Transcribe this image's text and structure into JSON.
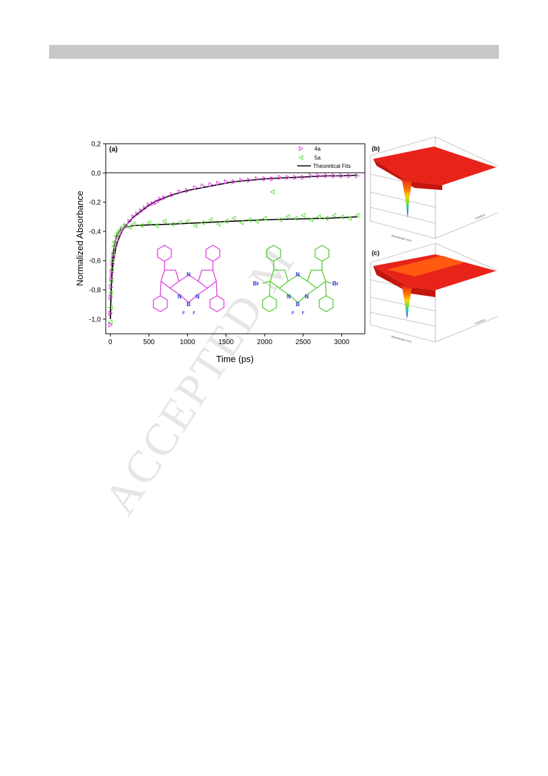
{
  "header": {
    "bar_color": "#c8c8c8"
  },
  "watermark": {
    "text": "ACCEPTED M"
  },
  "chart_data": [
    {
      "type": "scatter",
      "panel_label": "(a)",
      "xlabel": "Time (ps)",
      "ylabel": "Normalized Absorbance",
      "xlim": [
        -60,
        3300
      ],
      "ylim": [
        -1.1,
        0.2
      ],
      "x_ticks": [
        0,
        500,
        1000,
        1500,
        2000,
        2500,
        3000
      ],
      "y_ticks": [
        0.2,
        0.0,
        -0.2,
        -0.4,
        -0.6,
        -0.8,
        -1.0
      ],
      "y_tick_labels": [
        "0,2",
        "0,0",
        "-0,2",
        "-0,4",
        "-0,6",
        "-0,8",
        "-1,0"
      ],
      "grid": false,
      "legend_position": "top-right",
      "series": [
        {
          "name": "4a",
          "marker": "right-triangle",
          "color": "#e040e0",
          "x": [
            0,
            3,
            6,
            10,
            15,
            20,
            30,
            40,
            50,
            70,
            90,
            120,
            150,
            200,
            250,
            300,
            350,
            400,
            450,
            500,
            550,
            600,
            650,
            700,
            800,
            900,
            1000,
            1100,
            1200,
            1300,
            1400,
            1500,
            1600,
            1700,
            1800,
            1900,
            2000,
            2100,
            2200,
            2300,
            2400,
            2500,
            2600,
            2700,
            2800,
            2900,
            3000,
            3100,
            3200
          ],
          "y": [
            -1.04,
            -0.96,
            -0.85,
            -0.78,
            -0.72,
            -0.68,
            -0.62,
            -0.58,
            -0.55,
            -0.5,
            -0.46,
            -0.42,
            -0.39,
            -0.36,
            -0.33,
            -0.3,
            -0.28,
            -0.26,
            -0.24,
            -0.22,
            -0.21,
            -0.2,
            -0.18,
            -0.17,
            -0.15,
            -0.13,
            -0.12,
            -0.1,
            -0.09,
            -0.08,
            -0.07,
            -0.06,
            -0.06,
            -0.05,
            -0.05,
            -0.04,
            -0.04,
            -0.04,
            -0.03,
            -0.03,
            -0.03,
            -0.03,
            -0.02,
            -0.02,
            -0.02,
            -0.02,
            -0.02,
            -0.02,
            -0.02
          ]
        },
        {
          "name": "5a",
          "marker": "left-triangle",
          "color": "#66dd44",
          "x": [
            0,
            3,
            6,
            10,
            15,
            20,
            30,
            40,
            50,
            70,
            90,
            120,
            150,
            200,
            250,
            300,
            400,
            500,
            600,
            700,
            800,
            900,
            1000,
            1100,
            1200,
            1300,
            1400,
            1500,
            1600,
            1700,
            1800,
            1900,
            2000,
            2100,
            2200,
            2300,
            2400,
            2500,
            2600,
            2700,
            2800,
            2900,
            3000,
            3100,
            3200
          ],
          "y": [
            -1.02,
            -0.92,
            -0.82,
            -0.74,
            -0.66,
            -0.6,
            -0.55,
            -0.5,
            -0.47,
            -0.43,
            -0.41,
            -0.39,
            -0.37,
            -0.36,
            -0.37,
            -0.35,
            -0.36,
            -0.34,
            -0.36,
            -0.33,
            -0.35,
            -0.34,
            -0.33,
            -0.36,
            -0.34,
            -0.32,
            -0.35,
            -0.33,
            -0.31,
            -0.34,
            -0.32,
            -0.33,
            -0.31,
            -0.13,
            -0.32,
            -0.3,
            -0.31,
            -0.29,
            -0.32,
            -0.3,
            -0.31,
            -0.29,
            -0.3,
            -0.31,
            -0.29
          ]
        },
        {
          "name": "Theoretical Fits",
          "type": "line",
          "color": "#000000",
          "curves": [
            {
              "x": [
                0,
                5,
                10,
                20,
                30,
                50,
                75,
                100,
                150,
                200,
                300,
                400,
                500,
                600,
                800,
                1000,
                1200,
                1400,
                1600,
                1800,
                2000,
                2200,
                2400,
                2600,
                2800,
                3000,
                3200
              ],
              "y": [
                -1.0,
                -0.9,
                -0.81,
                -0.71,
                -0.65,
                -0.57,
                -0.5,
                -0.46,
                -0.4,
                -0.36,
                -0.3,
                -0.26,
                -0.22,
                -0.19,
                -0.15,
                -0.12,
                -0.1,
                -0.08,
                -0.06,
                -0.05,
                -0.04,
                -0.035,
                -0.03,
                -0.025,
                -0.02,
                -0.02,
                -0.015
              ]
            },
            {
              "x": [
                0,
                5,
                10,
                20,
                30,
                50,
                75,
                100,
                150,
                200,
                300,
                500,
                800,
                1200,
                1600,
                2000,
                2400,
                2800,
                3200
              ],
              "y": [
                -1.0,
                -0.89,
                -0.79,
                -0.67,
                -0.59,
                -0.5,
                -0.44,
                -0.41,
                -0.38,
                -0.37,
                -0.36,
                -0.355,
                -0.35,
                -0.34,
                -0.33,
                -0.32,
                -0.315,
                -0.31,
                -0.3
              ]
            }
          ]
        }
      ],
      "annotations": [
        {
          "id": "molecule-4a",
          "color": "#e040e0",
          "atom_labels": [
            "N",
            "N",
            "N",
            "B",
            "F",
            "F"
          ]
        },
        {
          "id": "molecule-5a",
          "color": "#55cc33",
          "atom_labels": [
            "Br",
            "Br",
            "N",
            "N",
            "N",
            "B",
            "F",
            "F"
          ]
        }
      ],
      "atom_label_color": "#2233cc"
    },
    {
      "type": "surface",
      "panel_label": "(b)",
      "xlabel": "Wavelength (nm)",
      "ylabel": "Time(ps)",
      "colors": [
        "#e8231a",
        "#ff7a00",
        "#ffd400",
        "#7dde2a",
        "#17c2c7",
        "#2b42e6",
        "#7a1fa0"
      ]
    },
    {
      "type": "surface",
      "panel_label": "(c)",
      "xlabel": "Wavelength (nm)",
      "ylabel": "Time(ps)",
      "colors": [
        "#e8231a",
        "#ff7a00",
        "#ffd400",
        "#7dde2a",
        "#17c2c7",
        "#2b42e6",
        "#7a1fa0"
      ]
    }
  ]
}
